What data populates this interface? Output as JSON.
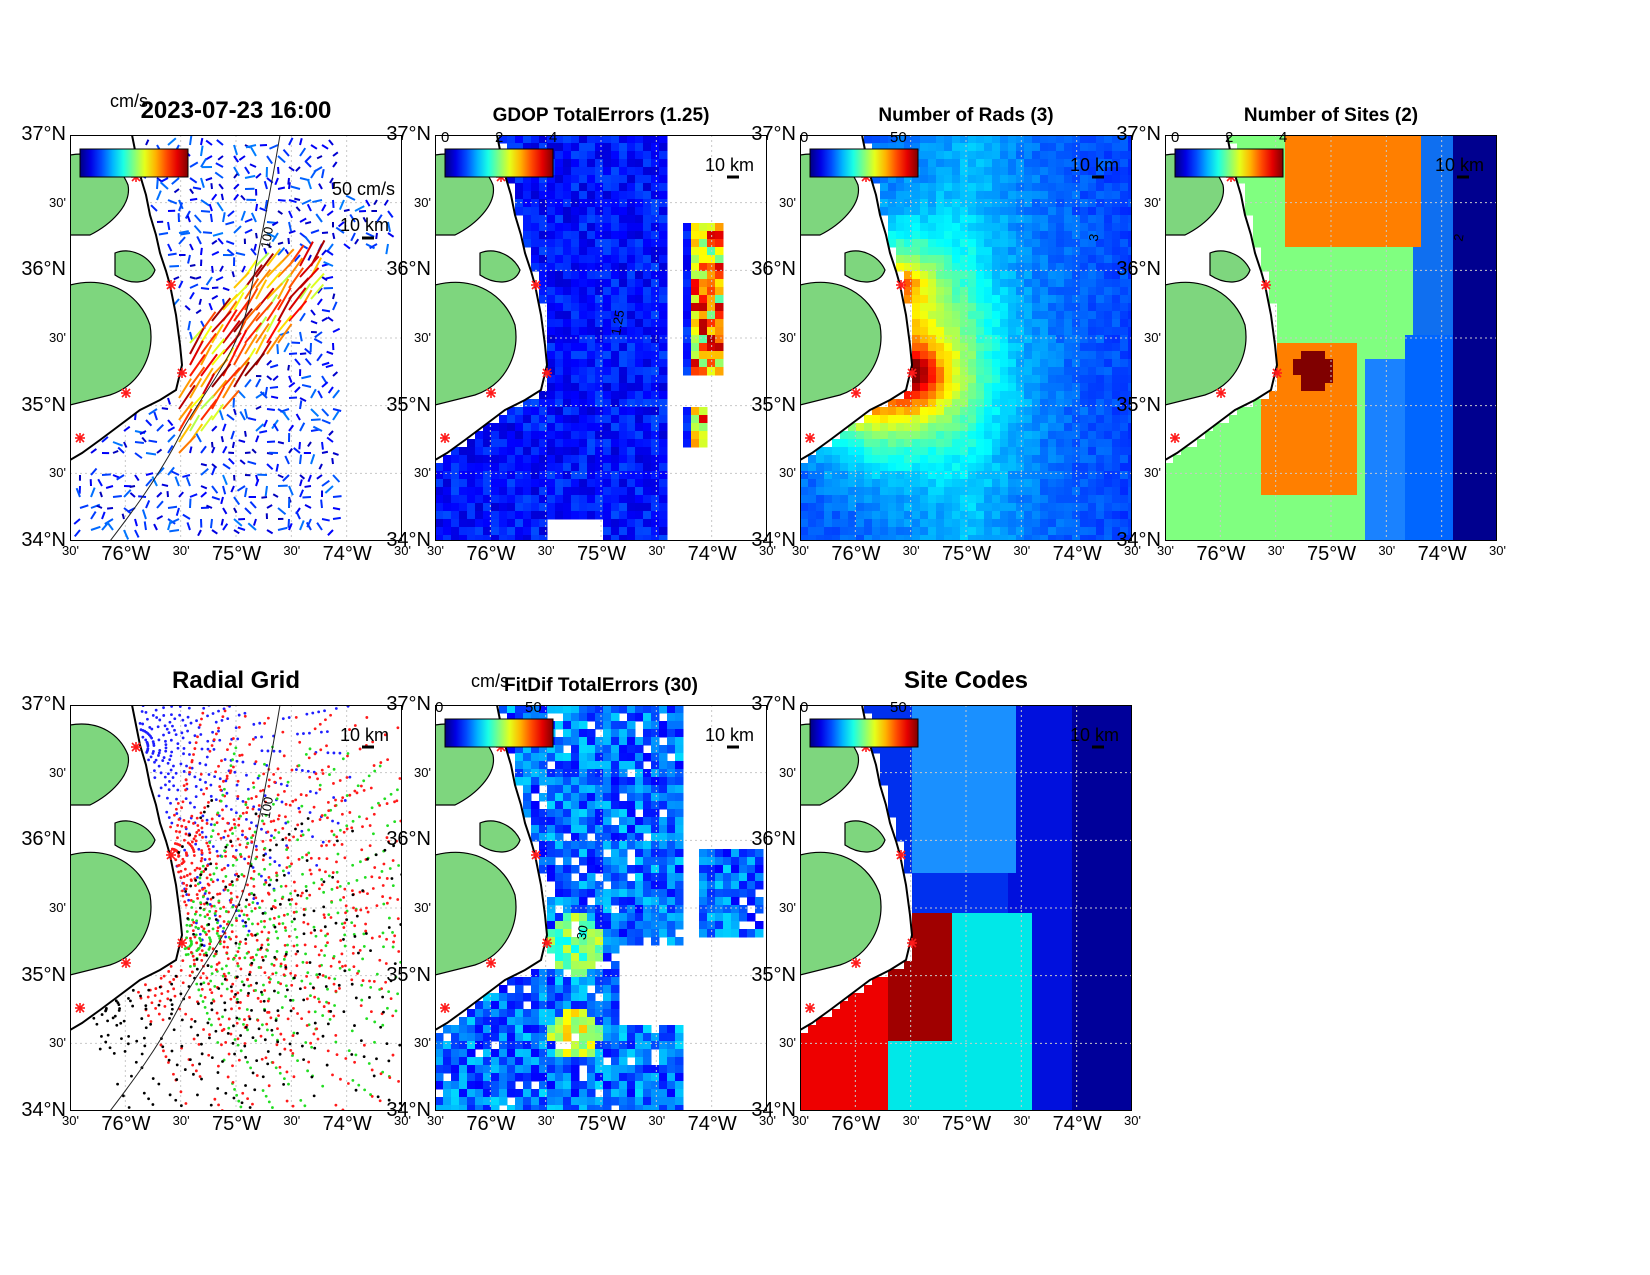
{
  "figure": {
    "panels": [
      {
        "id": "p1",
        "title": "2023-07-23 16:00",
        "title_size": "big",
        "cb_unit": "cm/s",
        "cb_ticks": [],
        "ref_arrow": "50 cm/s",
        "scale": "10 km",
        "kind": "vectors",
        "contour_label": "100"
      },
      {
        "id": "p2",
        "title": "GDOP TotalErrors (1.25)",
        "cb_unit": "",
        "cb_ticks": [
          "0",
          "2",
          "4"
        ],
        "scale": "10 km",
        "kind": "gdop",
        "contour_label": "1.25"
      },
      {
        "id": "p3",
        "title": "Number of Rads (3)",
        "cb_unit": "",
        "cb_ticks": [
          "0",
          "50"
        ],
        "scale": "10 km",
        "kind": "rads",
        "contour_label": "3"
      },
      {
        "id": "p4",
        "title": "Number of Sites (2)",
        "cb_unit": "",
        "cb_ticks": [
          "0",
          "2",
          "4"
        ],
        "scale": "10 km",
        "kind": "sites",
        "contour_label": "2"
      },
      {
        "id": "p5",
        "title": "Radial Grid",
        "title_size": "big",
        "cb_unit": "",
        "cb_ticks": [],
        "scale": "10 km",
        "kind": "radial",
        "contour_label": "100"
      },
      {
        "id": "p6",
        "title": "FitDif TotalErrors (30)",
        "cb_unit": "cm/s",
        "cb_ticks": [
          "0",
          "50"
        ],
        "scale": "10 km",
        "kind": "fitdif",
        "contour_label": "30"
      },
      {
        "id": "p7",
        "title": "Site Codes",
        "title_size": "big",
        "cb_unit": "",
        "cb_ticks": [
          "0",
          "50"
        ],
        "scale": "10 km",
        "kind": "codes",
        "contour_label": ""
      }
    ],
    "lat_ticks": [
      "37°N",
      "30'",
      "36°N",
      "30'",
      "35°N",
      "30'",
      "34°N"
    ],
    "lon_ticks": [
      "30'",
      "76°W",
      "30'",
      "75°W",
      "30'",
      "74°W",
      "30'"
    ],
    "colors": {
      "land": "#7ed67e",
      "coast": "#000000",
      "site": "#ff1a1a",
      "grid": "#c8c8c8"
    }
  }
}
